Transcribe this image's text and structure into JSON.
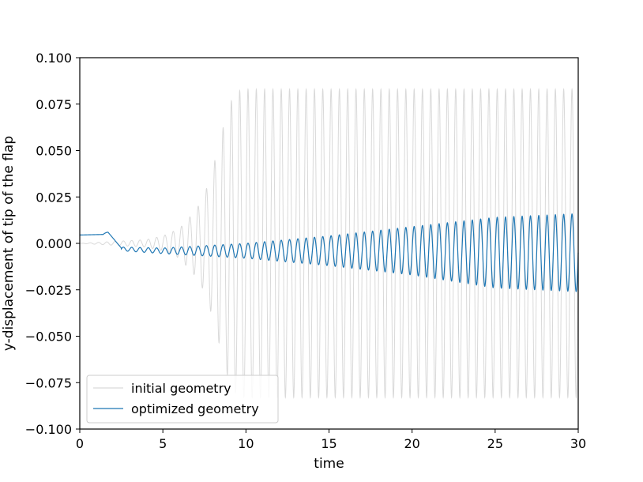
{
  "chart_data": {
    "type": "line",
    "title": "",
    "xlabel": "time",
    "ylabel": "y-displacement of tip of the flap",
    "xlim": [
      0,
      30
    ],
    "ylim": [
      -0.1,
      0.1
    ],
    "x_ticks": [
      0,
      5,
      10,
      15,
      20,
      25,
      30
    ],
    "x_tick_labels": [
      "0",
      "5",
      "10",
      "15",
      "20",
      "25",
      "30"
    ],
    "y_ticks": [
      -0.1,
      -0.075,
      -0.05,
      -0.025,
      0.0,
      0.025,
      0.05,
      0.075,
      0.1
    ],
    "y_tick_labels": [
      "−0.100",
      "−0.075",
      "−0.050",
      "−0.025",
      "0.000",
      "0.025",
      "0.050",
      "0.075",
      "0.100"
    ],
    "grid": false,
    "legend_position": "bottom-left",
    "series": [
      {
        "name": "initial geometry",
        "color": "#d9d9d9",
        "description_points": {
          "t": [
            0,
            2,
            4,
            5,
            6,
            7,
            7.5,
            8,
            8.5,
            9,
            9.5,
            10,
            30
          ],
          "amplitude": [
            0.0,
            0.001,
            0.002,
            0.004,
            0.008,
            0.018,
            0.026,
            0.04,
            0.058,
            0.075,
            0.082,
            0.083,
            0.083
          ],
          "center": [
            0.0,
            0.0,
            0.0,
            0.0,
            0.0,
            0.0,
            0.0,
            0.0,
            0.0,
            0.0,
            0.0,
            0.0,
            0.0
          ],
          "period": 0.5
        }
      },
      {
        "name": "optimized geometry",
        "color": "#1f77b4",
        "description_points": {
          "t": [
            2.5,
            5,
            10,
            15,
            20,
            25,
            30
          ],
          "amplitude": [
            0.001,
            0.0015,
            0.004,
            0.008,
            0.013,
            0.019,
            0.021
          ],
          "center": [
            -0.003,
            -0.004,
            -0.004,
            -0.004,
            -0.004,
            -0.005,
            -0.005
          ],
          "period": 0.5
        }
      }
    ]
  }
}
